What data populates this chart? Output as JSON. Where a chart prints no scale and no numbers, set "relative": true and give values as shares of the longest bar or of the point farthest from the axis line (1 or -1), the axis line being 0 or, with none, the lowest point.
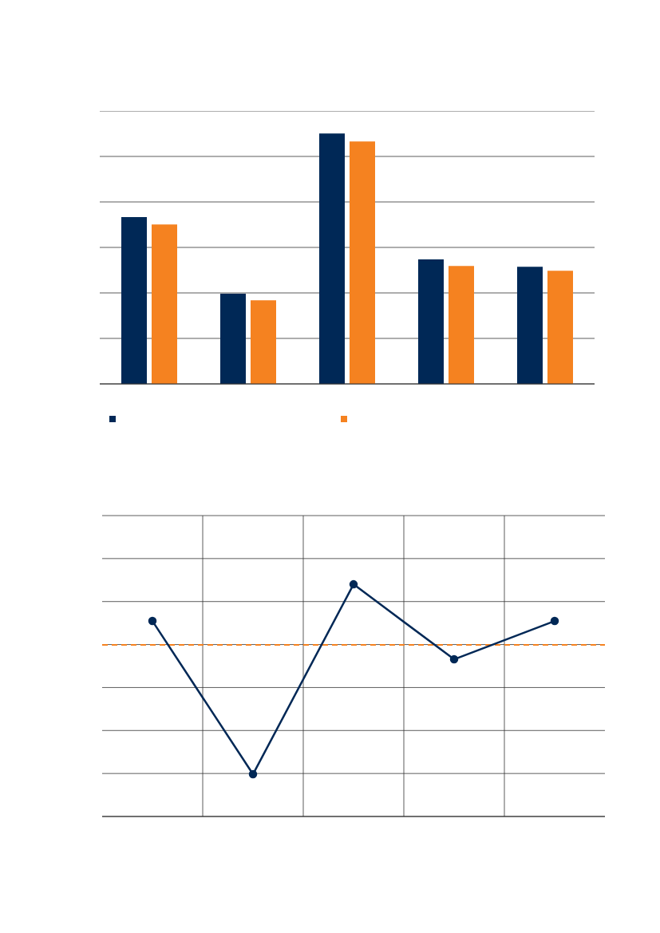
{
  "chart_data": [
    {
      "type": "bar",
      "relative": true,
      "categories": [
        null,
        null,
        null,
        null,
        null
      ],
      "series": [
        {
          "color": "#002856",
          "values": [
            0.666,
            0.36,
            1,
            0.497,
            0.468
          ]
        },
        {
          "color": "#f58220",
          "values": [
            0.637,
            0.334,
            0.968,
            0.471,
            0.452
          ]
        }
      ],
      "grid": "y"
    },
    {
      "type": "line",
      "relative": true,
      "categories": [
        null,
        null,
        null,
        null,
        null
      ],
      "series": [
        {
          "color": "#002856",
          "values": [
            0.842,
            0.182,
            1,
            0.677,
            0.842
          ]
        }
      ],
      "marker": "circle",
      "grid": true,
      "ref_lines": [
        {
          "axis": "y",
          "value": 0.739,
          "color": "#f58220",
          "line_style": "dashed"
        }
      ]
    }
  ]
}
